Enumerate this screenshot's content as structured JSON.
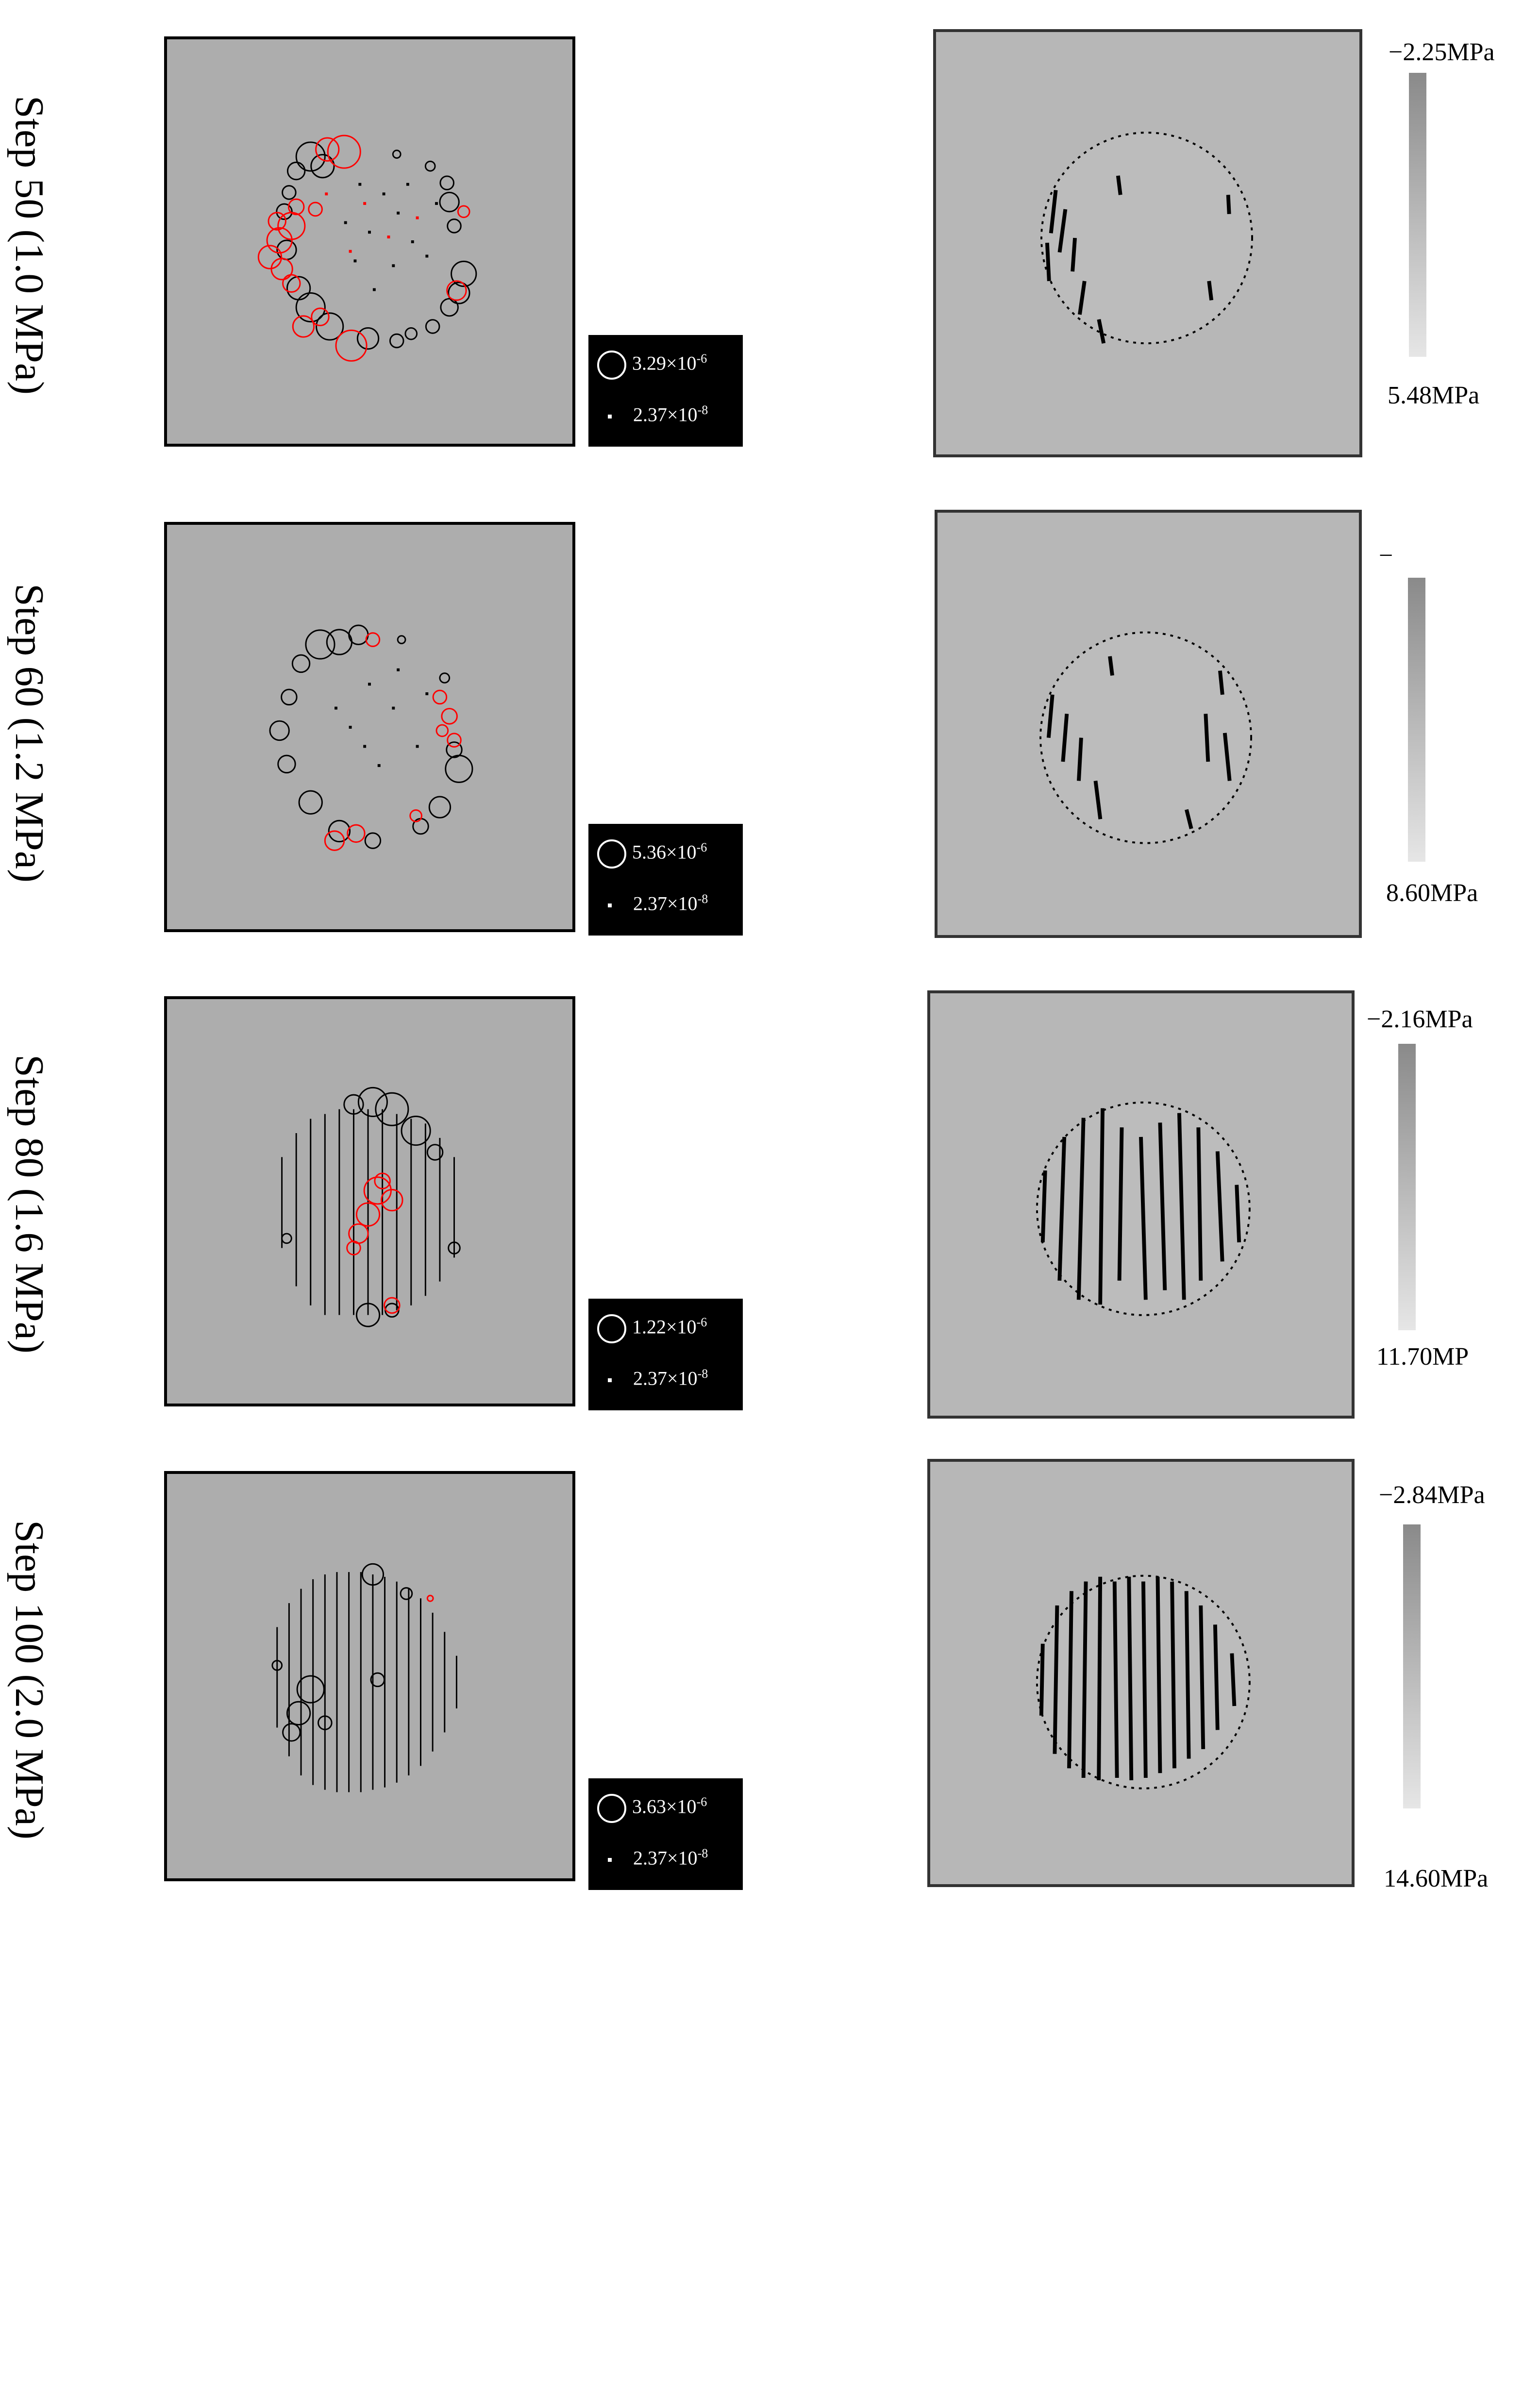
{
  "rows": [
    {
      "label": "Step 50 (1.0 MPa)",
      "legend": {
        "big_base": "3.29×10",
        "big_exp": "-6",
        "small_base": "2.37×10",
        "small_exp": "-8"
      },
      "scale": {
        "top": "−2.25MPa",
        "bottom": "5.48MPa"
      }
    },
    {
      "label": "Step 60 (1.2 MPa)",
      "legend": {
        "big_base": "5.36×10",
        "big_exp": "-6",
        "small_base": "2.37×10",
        "small_exp": "-8"
      },
      "scale": {
        "top": "−",
        "bottom": "8.60MPa"
      }
    },
    {
      "label": "Step 80 (1.6 MPa)",
      "legend": {
        "big_base": "1.22×10",
        "big_exp": "-6",
        "small_base": "2.37×10",
        "small_exp": "-8"
      },
      "scale": {
        "top": "−2.16MPa",
        "bottom": "11.70MP"
      }
    },
    {
      "label": "Step 100 (2.0 MPa)",
      "legend": {
        "big_base": "3.63×10",
        "big_exp": "-6",
        "small_base": "2.37×10",
        "small_exp": "-8"
      },
      "scale": {
        "top": "−2.84MPa",
        "bottom": "14.60MPa"
      }
    }
  ],
  "colors": {
    "panel_bg": "#adadad",
    "stress_bg": "#b7b7b7",
    "tensile_event": "#ff0000",
    "shear_event": "#000000",
    "legend_bg": "#000000"
  }
}
